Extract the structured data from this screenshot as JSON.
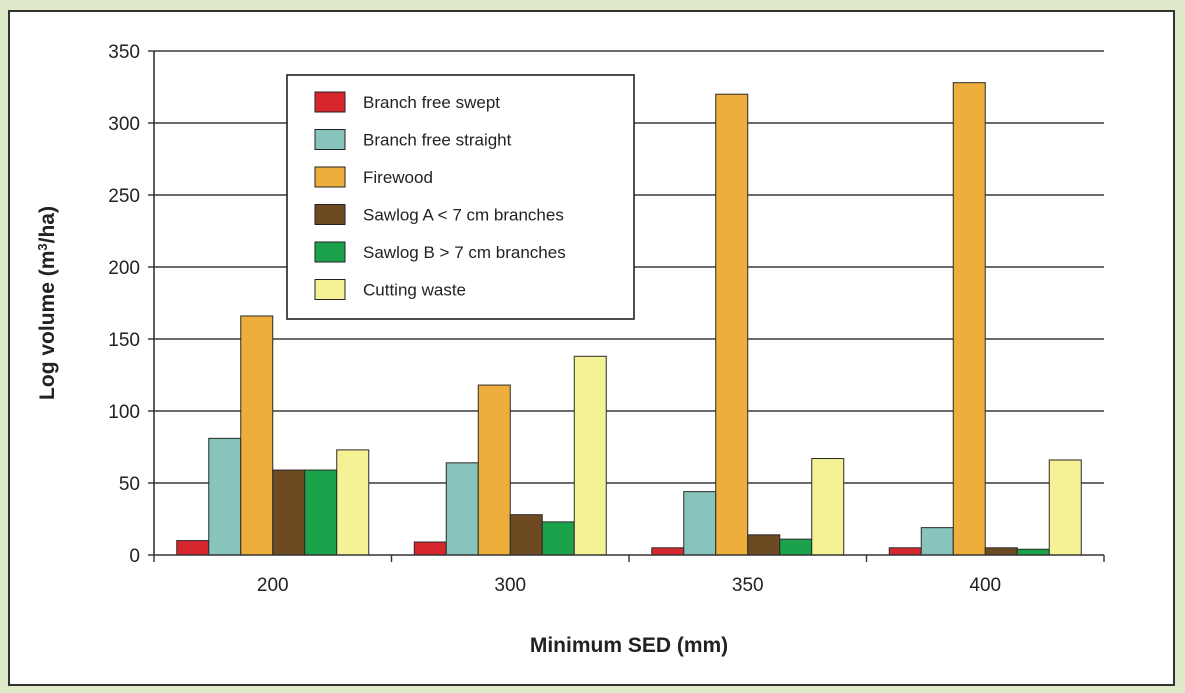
{
  "chart_data": {
    "type": "bar",
    "title": "",
    "xlabel": "Minimum SED (mm)",
    "ylabel_main": "Log volume (m",
    "ylabel_sup": "3",
    "ylabel_tail": "/ha)",
    "ylim": [
      0,
      350
    ],
    "yticks": [
      0,
      50,
      100,
      150,
      200,
      250,
      300,
      350
    ],
    "grid": true,
    "legend_position": "top-left",
    "categories": [
      "200",
      "300",
      "350",
      "400"
    ],
    "series": [
      {
        "name": "Branch free swept",
        "color": "#d8262e",
        "values": [
          10,
          9,
          5,
          5
        ]
      },
      {
        "name": "Branch free straight",
        "color": "#86c4bc",
        "values": [
          81,
          64,
          44,
          19
        ]
      },
      {
        "name": "Firewood",
        "color": "#eeae3c",
        "values": [
          166,
          118,
          320,
          328
        ]
      },
      {
        "name": "Sawlog A < 7 cm branches",
        "color": "#6e4a22",
        "values": [
          59,
          28,
          14,
          5
        ]
      },
      {
        "name": "Sawlog B > 7 cm branches",
        "color": "#1ca24a",
        "values": [
          59,
          23,
          11,
          4
        ]
      },
      {
        "name": "Cutting waste",
        "color": "#f4f294",
        "values": [
          73,
          138,
          67,
          66
        ]
      }
    ]
  }
}
